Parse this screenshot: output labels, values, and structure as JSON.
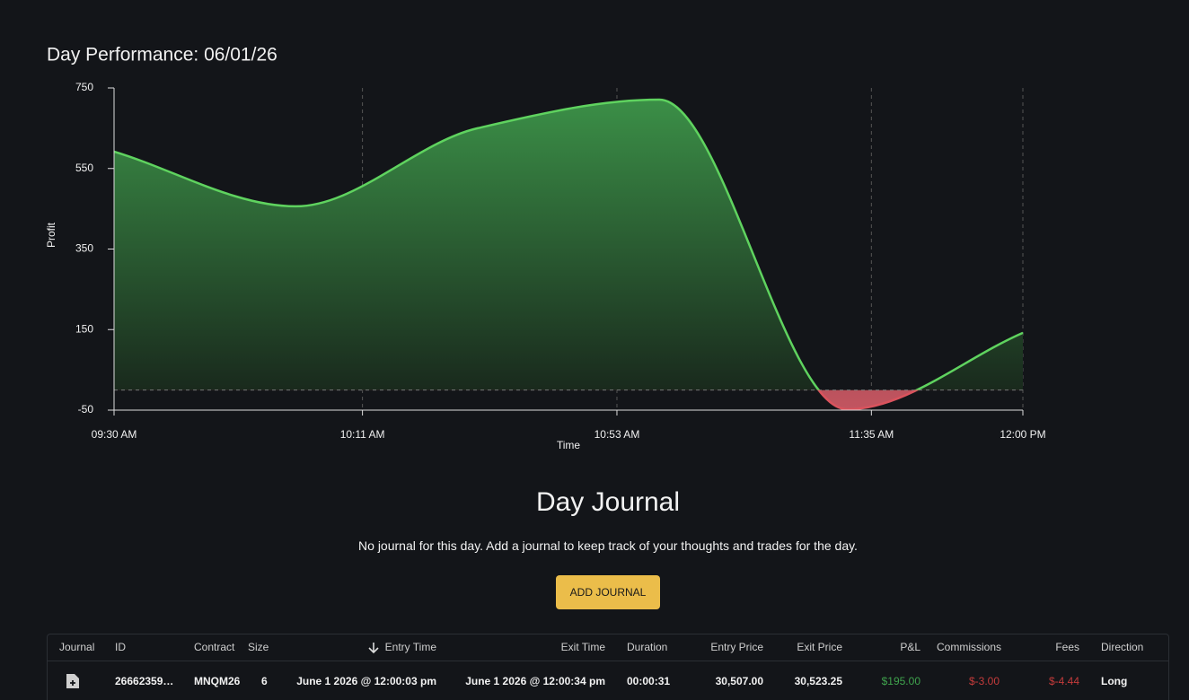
{
  "chart_data": {
    "type": "area",
    "title": "Day Performance: 06/01/26",
    "x_label": "Time",
    "y_label": "Profit",
    "x": [
      570,
      600,
      630,
      660,
      691,
      720
    ],
    "values": [
      592,
      456,
      650,
      721,
      -48,
      142
    ],
    "color": "#5fd35f",
    "negative_color": "#d9535d",
    "xlim": [
      570,
      720
    ],
    "xticks": [
      {
        "value": 570,
        "label": "09:30 AM"
      },
      {
        "value": 611,
        "label": "10:11 AM"
      },
      {
        "value": 653,
        "label": "10:53 AM"
      },
      {
        "value": 695,
        "label": "11:35 AM"
      },
      {
        "value": 720,
        "label": "12:00 PM"
      }
    ],
    "ylim": [
      -50,
      750
    ],
    "yticks": [
      -50,
      150,
      350,
      550,
      750
    ],
    "grid": true
  },
  "journal": {
    "title": "Day Journal",
    "message": "No journal for this day. Add a journal to keep track of your thoughts and trades for the day.",
    "button": "ADD JOURNAL"
  },
  "table": {
    "headers": [
      "Journal",
      "ID",
      "Contract",
      "Size",
      "Entry Time",
      "Exit Time",
      "Duration",
      "Entry Price",
      "Exit Price",
      "P&L",
      "Commissions",
      "Fees",
      "Direction"
    ],
    "rows": [
      {
        "id": "26662359…",
        "contract": "MNQM26",
        "size": 6,
        "entry_time": "June 1 2026 @ 12:00:03 pm",
        "exit_time": "June 1 2026 @ 12:00:34 pm",
        "duration": "00:00:31",
        "entry_price": "30,507.00",
        "exit_price": "30,523.25",
        "pnl": "$195.00",
        "commissions": "$-3.00",
        "fees": "$-4.44",
        "direction": "Long"
      }
    ]
  }
}
